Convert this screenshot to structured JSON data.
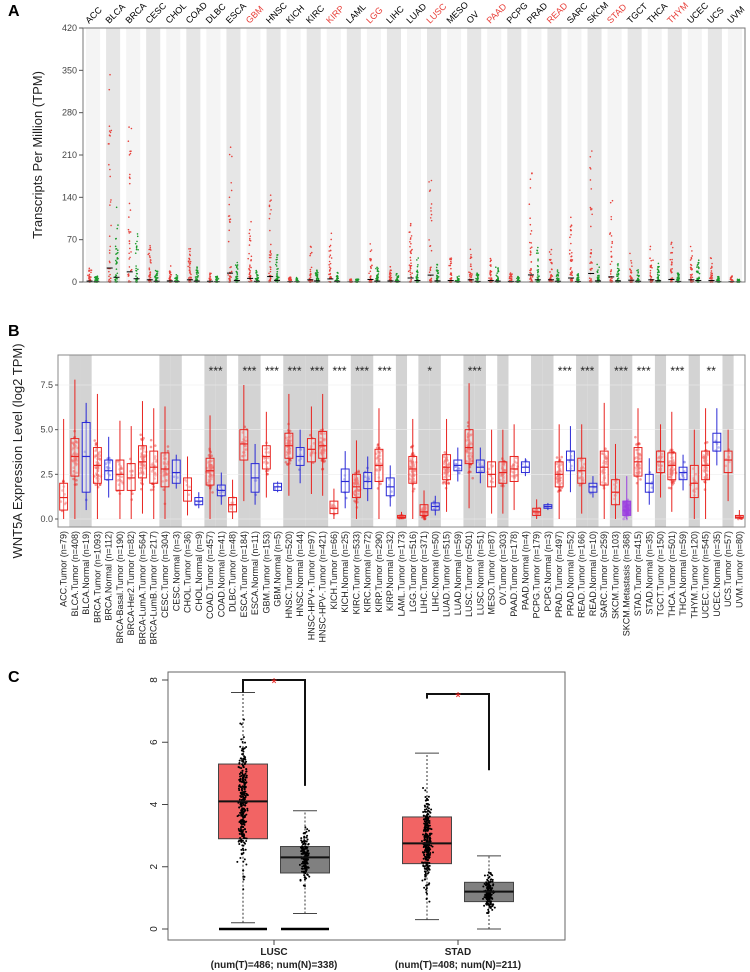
{
  "chart_data": [
    {
      "panel": "A",
      "type": "scatter",
      "ylabel": "Transcripts Per Million (TPM)",
      "ylim": [
        0,
        420
      ],
      "yticks": [
        0,
        70,
        140,
        210,
        280,
        350,
        420
      ],
      "categories": [
        "ACC",
        "BLCA",
        "BRCA",
        "CESC",
        "CHOL",
        "COAD",
        "DLBC",
        "ESCA",
        "GBM",
        "HNSC",
        "KICH",
        "KIRC",
        "KIRP",
        "LAML",
        "LGG",
        "LIHC",
        "LUAD",
        "LUSC",
        "MESO",
        "OV",
        "PAAD",
        "PCPG",
        "PRAD",
        "READ",
        "SARC",
        "SKCM",
        "STAD",
        "TGCT",
        "THCA",
        "THYM",
        "UCEC",
        "UCS",
        "UVM"
      ],
      "highlighted": [
        "GBM",
        "KIRP",
        "LGG",
        "LUSC",
        "PAAD",
        "READ",
        "STAD",
        "THYM"
      ],
      "tumor_max": [
        25,
        385,
        280,
        60,
        30,
        60,
        20,
        245,
        100,
        150,
        10,
        60,
        85,
        5,
        70,
        30,
        110,
        190,
        40,
        60,
        40,
        15,
        195,
        60,
        110,
        235,
        140,
        50,
        60,
        70,
        60,
        40,
        10
      ],
      "normal_max": [
        10,
        130,
        90,
        20,
        15,
        25,
        10,
        40,
        20,
        45,
        8,
        30,
        20,
        5,
        25,
        15,
        40,
        30,
        10,
        15,
        25,
        10,
        60,
        20,
        15,
        30,
        30,
        20,
        35,
        15,
        40,
        10,
        5
      ],
      "colors": {
        "tumor": "#e8403a",
        "normal": "#1a9a2a",
        "highlight_label": "#e8403a",
        "label": "#000000"
      }
    },
    {
      "panel": "B",
      "type": "box",
      "ylabel": "WNT5A Expression Level (log2 TPM)",
      "ylim": [
        0,
        9.5
      ],
      "yticks": [
        "0.0",
        "2.5",
        "5.0",
        "7.5"
      ],
      "groups": [
        {
          "label": "ACC.Tumor (n=79)",
          "kind": "tumor",
          "q": [
            0.5,
            1.2,
            2.0
          ],
          "w": [
            0,
            5.6
          ]
        },
        {
          "label": "BLCA.Tumor (n=408)",
          "kind": "tumor",
          "q": [
            2.4,
            3.5,
            4.5
          ],
          "w": [
            0,
            7.8
          ]
        },
        {
          "label": "BLCA.Normal (n=19)",
          "kind": "normal",
          "q": [
            1.5,
            3.5,
            5.4
          ],
          "w": [
            0.5,
            6.5
          ]
        },
        {
          "label": "BRCA.Tumor (n=1093)",
          "kind": "tumor",
          "q": [
            2.0,
            3.0,
            4.0
          ],
          "w": [
            0,
            7.0
          ]
        },
        {
          "label": "BRCA.Normal (n=112)",
          "kind": "normal",
          "q": [
            2.2,
            2.7,
            3.3
          ],
          "w": [
            1.2,
            4.6
          ]
        },
        {
          "label": "BRCA-Basal.Tumor (n=190)",
          "kind": "tumor",
          "q": [
            1.6,
            2.5,
            3.3
          ],
          "w": [
            0,
            5.5
          ]
        },
        {
          "label": "BRCA-Her2.Tumor (n=82)",
          "kind": "tumor",
          "q": [
            1.6,
            2.3,
            3.1
          ],
          "w": [
            0,
            5.2
          ]
        },
        {
          "label": "BRCA-LumA.Tumor (n=564)",
          "kind": "tumor",
          "q": [
            2.3,
            3.2,
            4.1
          ],
          "w": [
            0.3,
            6.6
          ]
        },
        {
          "label": "BRCA-LumB.Tumor (n=217)",
          "kind": "tumor",
          "q": [
            2.0,
            2.9,
            3.8
          ],
          "w": [
            0,
            6.2
          ]
        },
        {
          "label": "CESC.Tumor (n=304)",
          "kind": "tumor",
          "q": [
            1.8,
            2.8,
            3.7
          ],
          "w": [
            0,
            6.3
          ]
        },
        {
          "label": "CESC.Normal (n=3)",
          "kind": "normal",
          "q": [
            2.0,
            2.6,
            3.3
          ],
          "w": [
            1.7,
            3.6
          ]
        },
        {
          "label": "CHOL.Tumor (n=36)",
          "kind": "tumor",
          "q": [
            1.0,
            1.6,
            2.3
          ],
          "w": [
            0.2,
            3.5
          ]
        },
        {
          "label": "CHOL.Normal (n=9)",
          "kind": "normal",
          "q": [
            0.8,
            1.0,
            1.2
          ],
          "w": [
            0.6,
            1.5
          ]
        },
        {
          "label": "COAD.Tumor (n=457)",
          "kind": "tumor",
          "q": [
            1.9,
            2.7,
            3.4
          ],
          "w": [
            0,
            5.8
          ]
        },
        {
          "label": "COAD.Normal (n=41)",
          "kind": "normal",
          "q": [
            1.3,
            1.6,
            1.9
          ],
          "w": [
            0.8,
            2.6
          ]
        },
        {
          "label": "DLBC.Tumor (n=48)",
          "kind": "tumor",
          "q": [
            0.4,
            0.8,
            1.2
          ],
          "w": [
            0,
            2.2
          ]
        },
        {
          "label": "ESCA.Tumor (n=184)",
          "kind": "tumor",
          "q": [
            3.3,
            4.2,
            5.0
          ],
          "w": [
            1.0,
            7.5
          ]
        },
        {
          "label": "ESCA.Normal (n=11)",
          "kind": "normal",
          "q": [
            1.5,
            2.3,
            3.1
          ],
          "w": [
            0.8,
            4.2
          ]
        },
        {
          "label": "GBM.Tumor (n=153)",
          "kind": "tumor",
          "q": [
            2.8,
            3.5,
            4.1
          ],
          "w": [
            1.2,
            6.0
          ]
        },
        {
          "label": "GBM.Normal (n=5)",
          "kind": "normal",
          "q": [
            1.6,
            1.8,
            2.0
          ],
          "w": [
            1.5,
            2.1
          ]
        },
        {
          "label": "HNSC.Tumor (n=520)",
          "kind": "tumor",
          "q": [
            3.4,
            4.1,
            4.8
          ],
          "w": [
            1.3,
            7.0
          ]
        },
        {
          "label": "HNSC.Normal (n=44)",
          "kind": "normal",
          "q": [
            3.0,
            3.5,
            4.0
          ],
          "w": [
            2.0,
            5.0
          ]
        },
        {
          "label": "HNSC-HPV+.Tumor (n=97)",
          "kind": "tumor",
          "q": [
            3.2,
            3.9,
            4.5
          ],
          "w": [
            1.4,
            6.3
          ]
        },
        {
          "label": "HNSC-HPV-.Tumor (n=421)",
          "kind": "tumor",
          "q": [
            3.4,
            4.1,
            4.9
          ],
          "w": [
            1.3,
            7.0
          ]
        },
        {
          "label": "KICH.Tumor (n=66)",
          "kind": "tumor",
          "q": [
            0.3,
            0.6,
            1.0
          ],
          "w": [
            0,
            1.7
          ]
        },
        {
          "label": "KICH.Normal (n=25)",
          "kind": "normal",
          "q": [
            1.5,
            2.1,
            2.8
          ],
          "w": [
            0.6,
            3.8
          ]
        },
        {
          "label": "KIRC.Tumor (n=533)",
          "kind": "tumor",
          "q": [
            1.2,
            1.8,
            2.5
          ],
          "w": [
            0,
            4.4
          ]
        },
        {
          "label": "KIRC.Normal (n=72)",
          "kind": "normal",
          "q": [
            1.7,
            2.1,
            2.6
          ],
          "w": [
            1.0,
            3.5
          ]
        },
        {
          "label": "KIRP.Tumor (n=290)",
          "kind": "tumor",
          "q": [
            2.1,
            3.0,
            3.9
          ],
          "w": [
            0,
            6.2
          ]
        },
        {
          "label": "KIRP.Normal (n=32)",
          "kind": "normal",
          "q": [
            1.3,
            1.8,
            2.3
          ],
          "w": [
            0.7,
            3.0
          ]
        },
        {
          "label": "LAML.Tumor (n=173)",
          "kind": "tumor",
          "q": [
            0.05,
            0.1,
            0.2
          ],
          "w": [
            0,
            0.4
          ]
        },
        {
          "label": "LGG.Tumor (n=516)",
          "kind": "tumor",
          "q": [
            2.0,
            2.8,
            3.5
          ],
          "w": [
            0,
            5.6
          ]
        },
        {
          "label": "LIHC.Tumor (n=371)",
          "kind": "tumor",
          "q": [
            0.2,
            0.4,
            0.8
          ],
          "w": [
            0,
            1.6
          ]
        },
        {
          "label": "LIHC.Normal (n=50)",
          "kind": "normal",
          "q": [
            0.5,
            0.7,
            0.9
          ],
          "w": [
            0.2,
            1.3
          ]
        },
        {
          "label": "LUAD.Tumor (n=515)",
          "kind": "tumor",
          "q": [
            2.2,
            2.9,
            3.6
          ],
          "w": [
            0.4,
            5.6
          ]
        },
        {
          "label": "LUAD.Normal (n=59)",
          "kind": "normal",
          "q": [
            2.7,
            3.0,
            3.3
          ],
          "w": [
            2.1,
            4.0
          ]
        },
        {
          "label": "LUSC.Tumor (n=501)",
          "kind": "tumor",
          "q": [
            3.1,
            4.0,
            5.0
          ],
          "w": [
            0.6,
            7.6
          ]
        },
        {
          "label": "LUSC.Normal (n=51)",
          "kind": "normal",
          "q": [
            2.6,
            2.9,
            3.3
          ],
          "w": [
            2.0,
            4.0
          ]
        },
        {
          "label": "MESO.Tumor (n=87)",
          "kind": "tumor",
          "q": [
            1.8,
            2.5,
            3.2
          ],
          "w": [
            0.3,
            5.0
          ]
        },
        {
          "label": "OV.Tumor (n=303)",
          "kind": "tumor",
          "q": [
            2.0,
            2.6,
            3.2
          ],
          "w": [
            0.3,
            5.0
          ]
        },
        {
          "label": "PAAD.Tumor (n=178)",
          "kind": "tumor",
          "q": [
            2.1,
            2.8,
            3.5
          ],
          "w": [
            0.5,
            5.3
          ]
        },
        {
          "label": "PAAD.Normal (n=4)",
          "kind": "normal",
          "q": [
            2.6,
            2.9,
            3.2
          ],
          "w": [
            2.4,
            3.4
          ]
        },
        {
          "label": "PCPG.Tumor (n=179)",
          "kind": "tumor",
          "q": [
            0.2,
            0.4,
            0.6
          ],
          "w": [
            0,
            1.1
          ]
        },
        {
          "label": "PCPG.Normal (n=3)",
          "kind": "normal",
          "q": [
            0.6,
            0.7,
            0.8
          ],
          "w": [
            0.5,
            0.9
          ]
        },
        {
          "label": "PRAD.Tumor (n=497)",
          "kind": "tumor",
          "q": [
            1.8,
            2.5,
            3.2
          ],
          "w": [
            0,
            5.3
          ]
        },
        {
          "label": "PRAD.Normal (n=52)",
          "kind": "normal",
          "q": [
            2.7,
            3.3,
            3.8
          ],
          "w": [
            1.5,
            5.2
          ]
        },
        {
          "label": "READ.Tumor (n=166)",
          "kind": "tumor",
          "q": [
            2.0,
            2.7,
            3.4
          ],
          "w": [
            0.3,
            5.3
          ]
        },
        {
          "label": "READ.Normal (n=10)",
          "kind": "normal",
          "q": [
            1.5,
            1.8,
            2.0
          ],
          "w": [
            1.2,
            2.4
          ]
        },
        {
          "label": "SARC.Tumor (n=259)",
          "kind": "tumor",
          "q": [
            1.9,
            2.9,
            3.8
          ],
          "w": [
            0,
            6.5
          ]
        },
        {
          "label": "SKCM.Tumor (n=103)",
          "kind": "tumor",
          "q": [
            0.8,
            1.5,
            2.2
          ],
          "w": [
            0,
            4.2
          ]
        },
        {
          "label": "SKCM.Metastasis (n=368)",
          "kind": "metastasis",
          "q": [
            0.2,
            0.5,
            1.0
          ],
          "w": [
            0,
            2.4
          ]
        },
        {
          "label": "STAD.Tumor (n=415)",
          "kind": "tumor",
          "q": [
            2.4,
            3.2,
            4.0
          ],
          "w": [
            0.4,
            6.2
          ]
        },
        {
          "label": "STAD.Normal (n=35)",
          "kind": "normal",
          "q": [
            1.5,
            2.0,
            2.5
          ],
          "w": [
            0.8,
            3.4
          ]
        },
        {
          "label": "TGCT.Tumor (n=150)",
          "kind": "tumor",
          "q": [
            2.6,
            3.2,
            3.8
          ],
          "w": [
            1.2,
            5.3
          ]
        },
        {
          "label": "THCA.Tumor (n=501)",
          "kind": "tumor",
          "q": [
            2.2,
            3.0,
            3.7
          ],
          "w": [
            0.4,
            6.0
          ]
        },
        {
          "label": "THCA.Normal (n=59)",
          "kind": "normal",
          "q": [
            2.2,
            2.6,
            2.9
          ],
          "w": [
            1.6,
            3.6
          ]
        },
        {
          "label": "THYM.Tumor (n=120)",
          "kind": "tumor",
          "q": [
            1.2,
            2.0,
            3.0
          ],
          "w": [
            0,
            5.0
          ]
        },
        {
          "label": "UCEC.Tumor (n=545)",
          "kind": "tumor",
          "q": [
            2.2,
            3.0,
            3.8
          ],
          "w": [
            0,
            6.2
          ]
        },
        {
          "label": "UCEC.Normal (n=35)",
          "kind": "normal",
          "q": [
            3.8,
            4.3,
            4.8
          ],
          "w": [
            3.0,
            6.2
          ]
        },
        {
          "label": "UCS.Tumor (n=57)",
          "kind": "tumor",
          "q": [
            2.6,
            3.3,
            3.8
          ],
          "w": [
            1.0,
            5.0
          ]
        },
        {
          "label": "UVM.Tumor (n=80)",
          "kind": "tumor",
          "q": [
            0.05,
            0.1,
            0.2
          ],
          "w": [
            0,
            0.5
          ]
        }
      ],
      "significance": [
        {
          "group": "COAD",
          "stars": "***"
        },
        {
          "group": "ESCA",
          "stars": "***"
        },
        {
          "group": "GBM",
          "stars": "***"
        },
        {
          "group": "HNSC",
          "stars": "***"
        },
        {
          "group": "HNSC-HPV",
          "stars": "***"
        },
        {
          "group": "KICH",
          "stars": "***"
        },
        {
          "group": "KIRC",
          "stars": "***"
        },
        {
          "group": "KIRP",
          "stars": "***"
        },
        {
          "group": "LIHC",
          "stars": "*"
        },
        {
          "group": "LUSC",
          "stars": "***"
        },
        {
          "group": "PRAD",
          "stars": "***"
        },
        {
          "group": "READ",
          "stars": "***"
        },
        {
          "group": "SKCM",
          "stars": "***"
        },
        {
          "group": "STAD",
          "stars": "***"
        },
        {
          "group": "THCA",
          "stars": "***"
        },
        {
          "group": "UCEC",
          "stars": "**"
        }
      ],
      "colors": {
        "tumor": "#e8231f",
        "normal": "#2a2ad6",
        "metastasis": "#9b3fe0"
      }
    },
    {
      "panel": "C",
      "type": "box",
      "ylim": [
        0,
        8
      ],
      "yticks": [
        0,
        2,
        4,
        6,
        8
      ],
      "groups": [
        {
          "name": "LUSC",
          "sub": "(num(T)=486; num(N)=338)",
          "tumor": {
            "q1": 2.9,
            "median": 4.1,
            "q3": 5.3,
            "whisker": [
              0.2,
              7.6
            ]
          },
          "normal": {
            "q1": 1.8,
            "median": 2.3,
            "q3": 2.65,
            "whisker": [
              0.5,
              3.8
            ]
          }
        },
        {
          "name": "STAD",
          "sub": "(num(T)=408; num(N)=211)",
          "tumor": {
            "q1": 2.1,
            "median": 2.75,
            "q3": 3.6,
            "whisker": [
              0.3,
              5.65
            ]
          },
          "normal": {
            "q1": 0.88,
            "median": 1.2,
            "q3": 1.5,
            "whisker": [
              0,
              2.35
            ]
          }
        }
      ],
      "significance": "*",
      "colors": {
        "tumor": "#f26464",
        "normal": "#808080",
        "sig": "#e8231f"
      }
    }
  ],
  "panel_labels": [
    "A",
    "B",
    "C"
  ]
}
